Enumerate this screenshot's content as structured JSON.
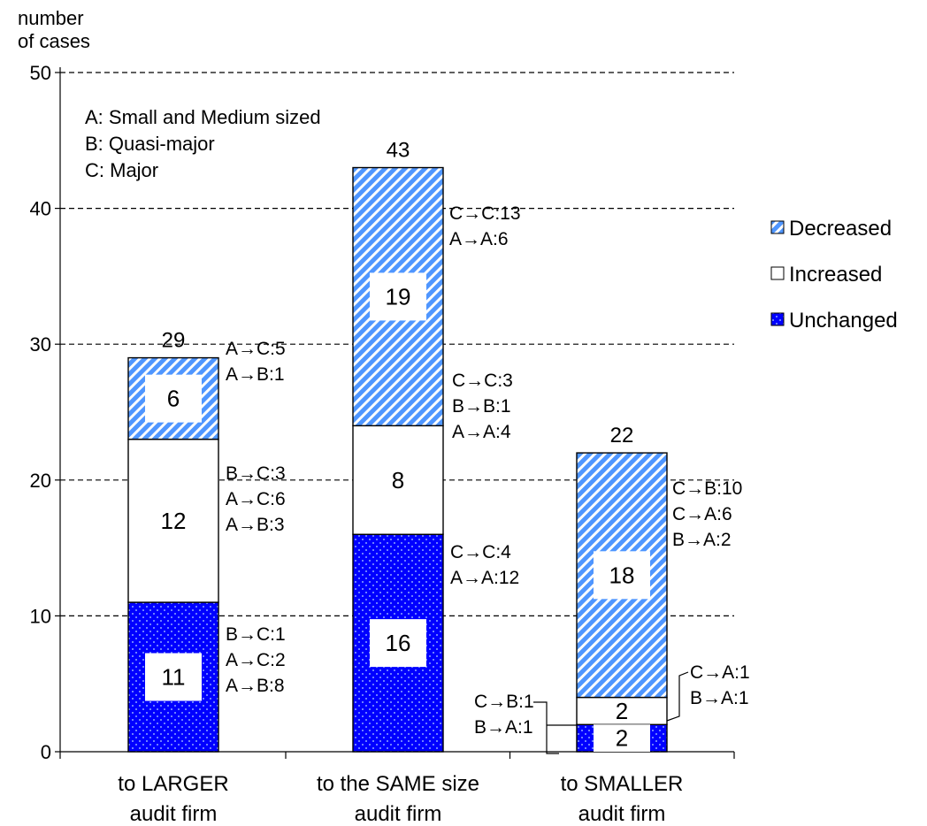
{
  "chart_data": {
    "type": "bar",
    "stacked": true,
    "ylabel": "number\nof cases",
    "ylim": [
      0,
      50
    ],
    "yticks": [
      0,
      10,
      20,
      30,
      40,
      50
    ],
    "grid": "dashed horizontal",
    "legend_position": "right",
    "categories": [
      "to LARGER\naudit firm",
      "to the SAME size\naudit firm",
      "to SMALLER\naudit firm"
    ],
    "series": [
      {
        "name": "Unchanged",
        "values": [
          11,
          16,
          2
        ],
        "color": "#0000ff",
        "pattern": "dotted"
      },
      {
        "name": "Increased",
        "values": [
          12,
          8,
          2
        ],
        "color": "#ffffff",
        "pattern": "none"
      },
      {
        "name": "Decreased",
        "values": [
          6,
          19,
          18
        ],
        "color": "#66aaff",
        "pattern": "diagonal-hatch"
      }
    ],
    "totals": [
      29,
      43,
      22
    ],
    "legend_order": [
      "Decreased",
      "Increased",
      "Unchanged"
    ],
    "abbreviations": [
      "A: Small and Medium sized",
      "B: Quasi-major",
      "C: Major"
    ],
    "annotations": [
      {
        "category": 0,
        "series": "Unchanged",
        "text": [
          "B→C:1",
          "A→C:2",
          "A→B:8"
        ]
      },
      {
        "category": 0,
        "series": "Increased",
        "text": [
          "B→C:3",
          "A→C:6",
          "A→B:3"
        ]
      },
      {
        "category": 0,
        "series": "Decreased",
        "text": [
          "A→C:5",
          "A→B:1"
        ]
      },
      {
        "category": 1,
        "series": "Unchanged",
        "text": [
          "C→C:4",
          "A→A:12"
        ]
      },
      {
        "category": 1,
        "series": "Increased",
        "text": [
          "C→C:3",
          "B→B:1",
          "A→A:4"
        ]
      },
      {
        "category": 1,
        "series": "Decreased",
        "text": [
          "C→C:13",
          "A→A:6"
        ]
      },
      {
        "category": 2,
        "series": "Unchanged",
        "text": [
          "C→B:1",
          "B→A:1"
        ]
      },
      {
        "category": 2,
        "series": "Increased",
        "text": [
          "C→A:1",
          "B→A:1"
        ]
      },
      {
        "category": 2,
        "series": "Decreased",
        "text": [
          "C→B:10",
          "C→A:6",
          "B→A:2"
        ]
      }
    ]
  }
}
